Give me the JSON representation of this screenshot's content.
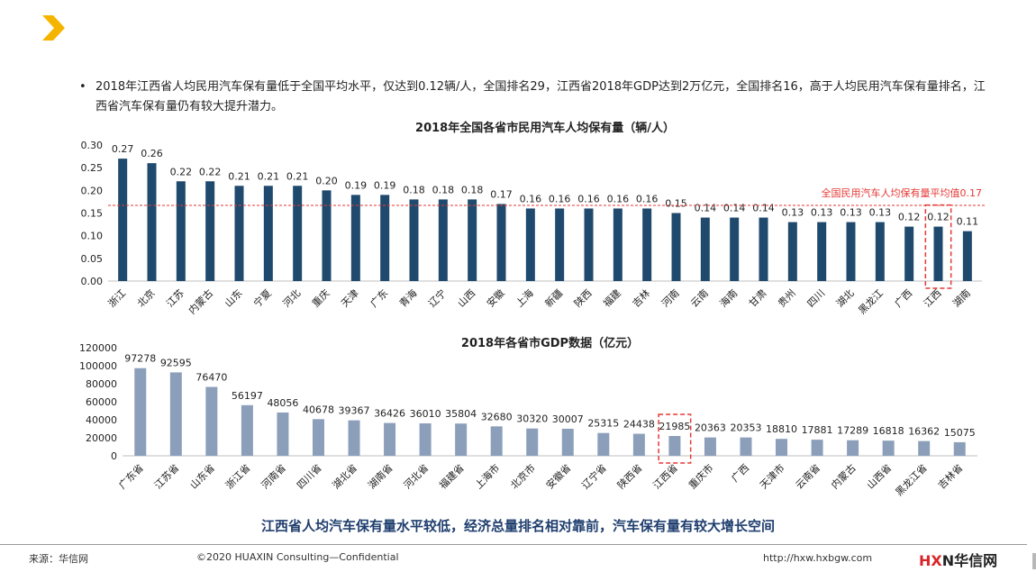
{
  "bullet": {
    "marker": "•",
    "text": "2018年江西省人均民用汽车保有量低于全国平均水平，仅达到0.12辆/人，全国排名29，江西省2018年GDP达到2万亿元，全国排名16，高于人均民用汽车保有量排名，江西省汽车保有量仍有较大提升潜力。"
  },
  "colors": {
    "accent_chevron": "#f5b400",
    "bar_dark": "#1f4a6e",
    "bar_light": "#8c9fba",
    "avg_line": "#e53935",
    "highlight_box": "#e53935",
    "conclusion_text": "#1f3e6e"
  },
  "chart_data": [
    {
      "type": "bar",
      "title": "2018年全国各省市民用汽车人均保有量（辆/人）",
      "categories": [
        "浙江",
        "北京",
        "江苏",
        "内蒙古",
        "山东",
        "宁夏",
        "河北",
        "重庆",
        "天津",
        "广东",
        "青海",
        "辽宁",
        "山西",
        "安徽",
        "上海",
        "新疆",
        "陕西",
        "福建",
        "吉林",
        "河南",
        "云南",
        "海南",
        "甘肃",
        "贵州",
        "四川",
        "湖北",
        "黑龙江",
        "广西",
        "江西",
        "湖南"
      ],
      "values": [
        0.27,
        0.26,
        0.22,
        0.22,
        0.21,
        0.21,
        0.21,
        0.2,
        0.19,
        0.19,
        0.18,
        0.18,
        0.18,
        0.17,
        0.16,
        0.16,
        0.16,
        0.16,
        0.16,
        0.15,
        0.14,
        0.14,
        0.14,
        0.13,
        0.13,
        0.13,
        0.13,
        0.12,
        0.12,
        0.11
      ],
      "data_labels": [
        "0.27",
        "0.26",
        "0.22",
        "0.22",
        "0.21",
        "0.21",
        "0.21",
        "0.20",
        "0.19",
        "0.19",
        "0.18",
        "0.18",
        "0.18",
        "0.17",
        "0.16",
        "0.16",
        "0.16",
        "0.16",
        "0.16",
        "0.15",
        "0.14",
        "0.14",
        "0.14",
        "0.13",
        "0.13",
        "0.13",
        "0.13",
        "0.12",
        "0.12",
        "0.11"
      ],
      "ylim": [
        0,
        0.3
      ],
      "yticks": [
        "0.00",
        "0.05",
        "0.10",
        "0.15",
        "0.20",
        "0.25",
        "0.30"
      ],
      "reference_line": {
        "value": 0.167,
        "label": "全国民用汽车人均保有量平均值0.17"
      },
      "highlight": "江西",
      "grid": false,
      "xlabel": "",
      "ylabel": ""
    },
    {
      "type": "bar",
      "title": "2018年各省市GDP数据（亿元）",
      "categories": [
        "广东省",
        "江苏省",
        "山东省",
        "浙江省",
        "河南省",
        "四川省",
        "湖北省",
        "湖南省",
        "河北省",
        "福建省",
        "上海市",
        "北京市",
        "安徽省",
        "辽宁省",
        "陕西省",
        "江西省",
        "重庆市",
        "广西",
        "天津市",
        "云南省",
        "内蒙古",
        "山西省",
        "黑龙江省",
        "吉林省"
      ],
      "values": [
        97278,
        92595,
        76470,
        56197,
        48056,
        40678,
        39367,
        36426,
        36010,
        35804,
        32680,
        30320,
        30007,
        25315,
        24438,
        21985,
        20363,
        20353,
        18810,
        17881,
        17289,
        16818,
        16362,
        15075
      ],
      "ylim": [
        0,
        120000
      ],
      "yticks": [
        "0",
        "20000",
        "40000",
        "60000",
        "80000",
        "100000",
        "120000"
      ],
      "highlight": "江西省",
      "grid": false,
      "xlabel": "",
      "ylabel": ""
    }
  ],
  "conclusion": "江西省人均汽车保有量水平较低，经济总量排名相对靠前，汽车保有量有较大增长空间",
  "footer": {
    "source": "来源：华信网",
    "copyright": "©2020 HUAXIN Consulting—Confidential",
    "url": "http://hxw.hxbgw.com",
    "logo_hx": "HX",
    "logo_rest": "N华信网"
  }
}
